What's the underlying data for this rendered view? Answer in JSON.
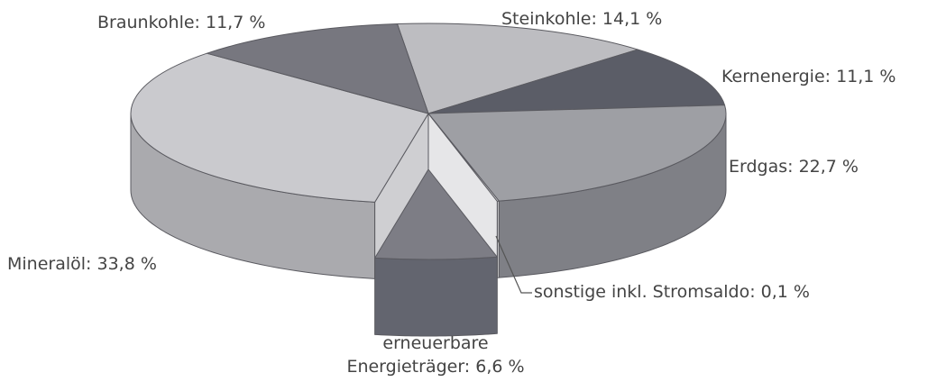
{
  "chart_data": {
    "type": "pie",
    "value_labels": [
      "Steinkohle: 14,1 %",
      "Kernenergie: 11,1 %",
      "Erdgas: 22,7 %",
      "sonstige inkl. Stromsaldo: 0,1 %",
      "erneuerbare\nEnergieträger: 6,6 %",
      "Mineralöl: 33,8 %",
      "Braunkohle: 11,7 %"
    ],
    "values": [
      14.1,
      11.1,
      22.7,
      0.1,
      6.6,
      33.8,
      11.7
    ],
    "colors": [
      "#bdbdc1",
      "#5b5d67",
      "#9e9fa4",
      "#e2e2e4",
      "#7d7d85",
      "#cacace",
      "#77777f"
    ],
    "side_colors": [
      "#9a9a9e",
      "#4a4c55",
      "#7f8086",
      "#d2d2d4",
      "#63656f",
      "#aaaaae",
      "#5f5f67"
    ],
    "exploded": [
      4
    ]
  }
}
